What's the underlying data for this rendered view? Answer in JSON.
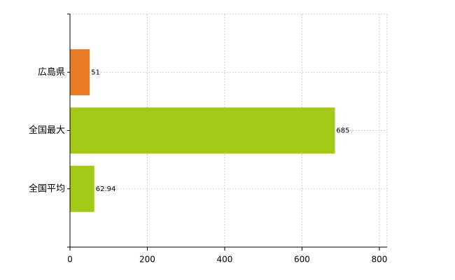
{
  "chart_data": {
    "type": "hbar",
    "categories": [
      "広島県",
      "全国最大",
      "全国平均"
    ],
    "values": [
      51,
      685,
      62.94
    ],
    "colors": [
      "#e87c25",
      "#a5c918",
      "#a5c918"
    ],
    "xlim": [
      0,
      820
    ],
    "xticks": [
      0,
      200,
      400,
      600,
      800
    ],
    "grid": true
  }
}
